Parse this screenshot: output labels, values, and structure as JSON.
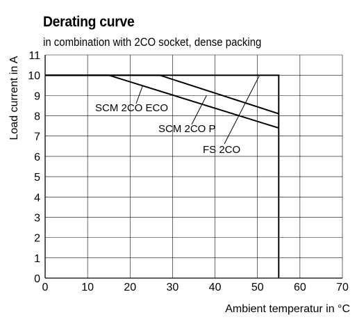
{
  "chart_data": {
    "type": "line",
    "title": "Derating curve",
    "subtitle": "in combination with 2CO socket, dense packing",
    "xlabel": "Ambient temperatur in °C",
    "ylabel": "Load  current in A",
    "xlim": [
      0,
      70
    ],
    "ylim": [
      0,
      11
    ],
    "xticks": [
      0,
      10,
      20,
      30,
      40,
      50,
      60,
      70
    ],
    "yticks": [
      0,
      1,
      2,
      3,
      4,
      5,
      6,
      7,
      8,
      9,
      10,
      11
    ],
    "grid": true,
    "series": [
      {
        "name": "SCM 2CO ECO",
        "x": [
          0,
          15,
          55
        ],
        "y": [
          10,
          10,
          7.4
        ]
      },
      {
        "name": "SCM 2CO P",
        "x": [
          0,
          27,
          55
        ],
        "y": [
          10,
          10,
          8.1
        ]
      },
      {
        "name": "FS 2CO",
        "x": [
          0,
          55,
          55
        ],
        "y": [
          10,
          10,
          0
        ]
      }
    ],
    "annotations": [
      {
        "text": "SCM 2CO ECO",
        "series": "SCM 2CO ECO",
        "point": [
          23,
          9.5
        ]
      },
      {
        "text": "SCM 2CO P",
        "series": "SCM 2CO P",
        "point": [
          38,
          9.0
        ]
      },
      {
        "text": "FS 2CO",
        "series": "FS 2CO",
        "point": [
          50.5,
          10
        ]
      }
    ]
  }
}
